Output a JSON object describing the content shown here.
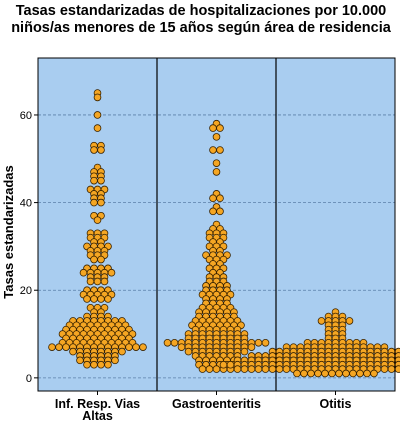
{
  "chart_data": {
    "type": "scatter",
    "title": [
      "Tasas estandarizadas de hospitalizaciones por 10.000",
      "niños/as menores de 15 años según área de residencia"
    ],
    "ylabel": "Tasas estandarizadas",
    "xlabel": "",
    "ylim": [
      -3,
      73
    ],
    "yticks": [
      0,
      20,
      40,
      60
    ],
    "grid": true,
    "panel_color": "#a9cdf0",
    "marker_color": "#f5a623",
    "marker_edge_color": "#3a2300",
    "categories": [
      "Inf. Resp. Vias Altas",
      "Gastroenteritis",
      "Otitis"
    ],
    "category_lines": [
      [
        "Inf. Resp. Vias",
        "Altas"
      ],
      [
        "Gastroenteritis"
      ],
      [
        "Otitis"
      ]
    ],
    "series": [
      {
        "counts": [
          [
            65,
            1
          ],
          [
            64,
            1
          ],
          [
            60,
            1
          ],
          [
            57,
            1
          ],
          [
            53,
            2
          ],
          [
            52,
            2
          ],
          [
            48,
            1
          ],
          [
            47,
            2
          ],
          [
            46,
            2
          ],
          [
            45,
            2
          ],
          [
            43,
            3
          ],
          [
            42,
            2
          ],
          [
            41,
            2
          ],
          [
            40,
            2
          ],
          [
            37,
            2
          ],
          [
            36,
            1
          ],
          [
            33,
            3
          ],
          [
            32,
            3
          ],
          [
            31,
            2
          ],
          [
            30,
            4
          ],
          [
            29,
            3
          ],
          [
            28,
            3
          ],
          [
            27,
            2
          ],
          [
            25,
            4
          ],
          [
            24,
            5
          ],
          [
            23,
            3
          ],
          [
            22,
            3
          ],
          [
            20,
            4
          ],
          [
            19,
            5
          ],
          [
            18,
            4
          ],
          [
            16,
            3
          ],
          [
            15,
            2
          ],
          [
            14,
            4
          ],
          [
            13,
            8
          ],
          [
            12,
            9
          ],
          [
            11,
            10
          ],
          [
            10,
            11
          ],
          [
            9,
            10
          ],
          [
            8,
            11
          ],
          [
            7,
            14
          ],
          [
            6,
            8
          ],
          [
            5,
            6
          ],
          [
            4,
            6
          ],
          [
            3,
            4
          ]
        ]
      },
      {
        "counts": [
          [
            58,
            1
          ],
          [
            57,
            2
          ],
          [
            55,
            1
          ],
          [
            52,
            2
          ],
          [
            49,
            1
          ],
          [
            47,
            1
          ],
          [
            42,
            1
          ],
          [
            41,
            2
          ],
          [
            39,
            1
          ],
          [
            38,
            2
          ],
          [
            35,
            1
          ],
          [
            34,
            2
          ],
          [
            33,
            3
          ],
          [
            32,
            3
          ],
          [
            31,
            2
          ],
          [
            30,
            3
          ],
          [
            29,
            2
          ],
          [
            28,
            4
          ],
          [
            27,
            3
          ],
          [
            26,
            2
          ],
          [
            25,
            3
          ],
          [
            24,
            2
          ],
          [
            23,
            3
          ],
          [
            22,
            3
          ],
          [
            21,
            4
          ],
          [
            20,
            4
          ],
          [
            19,
            5
          ],
          [
            18,
            4
          ],
          [
            17,
            4
          ],
          [
            16,
            5
          ],
          [
            15,
            6
          ],
          [
            14,
            6
          ],
          [
            13,
            7
          ],
          [
            12,
            8
          ],
          [
            11,
            7
          ],
          [
            10,
            9
          ],
          [
            9,
            9
          ],
          [
            8,
            15
          ],
          [
            7,
            11
          ],
          [
            6,
            9
          ],
          [
            5,
            7
          ],
          [
            4,
            6
          ],
          [
            3,
            6
          ],
          [
            2,
            5
          ]
        ]
      },
      {
        "counts": [
          [
            15,
            1
          ],
          [
            14,
            3
          ],
          [
            13,
            5
          ],
          [
            12,
            3
          ],
          [
            11,
            3
          ],
          [
            10,
            3
          ],
          [
            9,
            3
          ],
          [
            8,
            9
          ],
          [
            7,
            15
          ],
          [
            6,
            19
          ],
          [
            5,
            25
          ],
          [
            4,
            29
          ],
          [
            3,
            33
          ],
          [
            2,
            29
          ],
          [
            1,
            12
          ]
        ]
      }
    ]
  }
}
